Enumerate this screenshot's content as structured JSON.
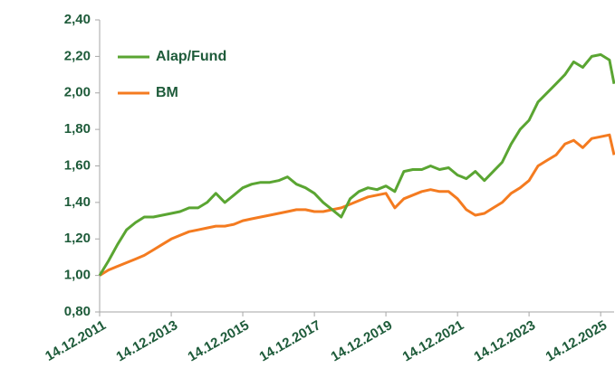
{
  "chart_data": {
    "type": "line",
    "x": [
      "14.12.2011",
      "14.03.2012",
      "14.06.2012",
      "14.09.2012",
      "14.12.2012",
      "14.03.2013",
      "14.06.2013",
      "14.09.2013",
      "14.12.2013",
      "14.03.2014",
      "14.06.2014",
      "14.09.2014",
      "14.12.2014",
      "14.03.2015",
      "14.06.2015",
      "14.09.2015",
      "14.12.2015",
      "14.03.2016",
      "14.06.2016",
      "14.09.2016",
      "14.12.2016",
      "14.03.2017",
      "14.06.2017",
      "14.09.2017",
      "14.12.2017",
      "14.03.2018",
      "14.06.2018",
      "14.09.2018",
      "14.12.2018",
      "14.03.2019",
      "14.06.2019",
      "14.09.2019",
      "14.12.2019",
      "14.03.2020",
      "14.06.2020",
      "14.09.2020",
      "14.12.2020",
      "14.03.2021",
      "14.06.2021",
      "14.09.2021",
      "14.12.2021",
      "14.03.2022",
      "14.06.2022",
      "14.09.2022",
      "14.12.2022",
      "14.03.2023",
      "14.06.2023",
      "14.09.2023",
      "14.12.2023",
      "14.03.2024",
      "14.06.2024",
      "14.09.2024",
      "14.12.2024",
      "14.03.2025",
      "14.06.2025",
      "14.09.2025",
      "14.12.2025",
      "14.03.2026",
      "30.04.2026"
    ],
    "series": [
      {
        "name": "Alap/Fund",
        "color": "#5aa532",
        "values": [
          1.0,
          1.08,
          1.17,
          1.25,
          1.29,
          1.32,
          1.32,
          1.33,
          1.34,
          1.35,
          1.37,
          1.37,
          1.4,
          1.45,
          1.4,
          1.44,
          1.48,
          1.5,
          1.51,
          1.51,
          1.52,
          1.54,
          1.5,
          1.48,
          1.45,
          1.4,
          1.36,
          1.32,
          1.42,
          1.46,
          1.48,
          1.47,
          1.49,
          1.46,
          1.57,
          1.58,
          1.58,
          1.6,
          1.58,
          1.59,
          1.55,
          1.53,
          1.57,
          1.52,
          1.57,
          1.62,
          1.72,
          1.8,
          1.85,
          1.95,
          2.0,
          2.05,
          2.1,
          2.17,
          2.14,
          2.2,
          2.21,
          2.18,
          2.05
        ]
      },
      {
        "name": "BM",
        "color": "#f47b20",
        "values": [
          1.0,
          1.03,
          1.05,
          1.07,
          1.09,
          1.11,
          1.14,
          1.17,
          1.2,
          1.22,
          1.24,
          1.25,
          1.26,
          1.27,
          1.27,
          1.28,
          1.3,
          1.31,
          1.32,
          1.33,
          1.34,
          1.35,
          1.36,
          1.36,
          1.35,
          1.35,
          1.36,
          1.37,
          1.39,
          1.41,
          1.43,
          1.44,
          1.45,
          1.37,
          1.42,
          1.44,
          1.46,
          1.47,
          1.46,
          1.46,
          1.42,
          1.36,
          1.33,
          1.34,
          1.37,
          1.4,
          1.45,
          1.48,
          1.52,
          1.6,
          1.63,
          1.66,
          1.72,
          1.74,
          1.7,
          1.75,
          1.76,
          1.77,
          1.66
        ]
      }
    ],
    "xlim": [
      "14.12.2011",
      "30.04.2026"
    ],
    "xticks": [
      "14.12.2011",
      "14.12.2013",
      "14.12.2015",
      "14.12.2017",
      "14.12.2019",
      "14.12.2021",
      "14.12.2023",
      "14.12.2025"
    ],
    "ylim": [
      0.8,
      2.4
    ],
    "yticks": [
      {
        "value": 0.8,
        "label": "0,80"
      },
      {
        "value": 1.0,
        "label": "1,00"
      },
      {
        "value": 1.2,
        "label": "1,20"
      },
      {
        "value": 1.4,
        "label": "1,40"
      },
      {
        "value": 1.6,
        "label": "1,60"
      },
      {
        "value": 1.8,
        "label": "1,80"
      },
      {
        "value": 2.0,
        "label": "2,00"
      },
      {
        "value": 2.2,
        "label": "2,20"
      },
      {
        "value": 2.4,
        "label": "2,40"
      }
    ],
    "legend": "upper left",
    "grid": false
  }
}
